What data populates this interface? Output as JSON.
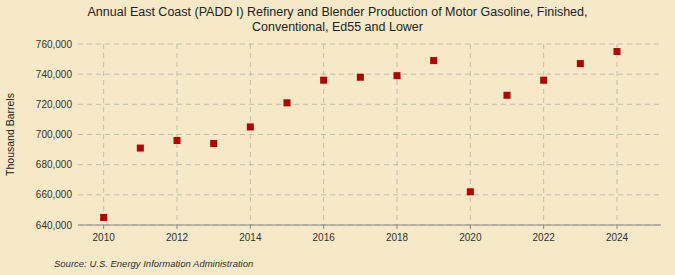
{
  "chart_data": {
    "type": "scatter",
    "title": "Annual East Coast (PADD I) Refinery and Blender Production of Motor Gasoline, Finished,\nConventional, Ed55 and Lower",
    "ylabel": "Thousand Barrels",
    "source": "Source: U.S. Energy Information Administration",
    "x": [
      2010,
      2011,
      2012,
      2013,
      2014,
      2015,
      2016,
      2017,
      2018,
      2019,
      2020,
      2021,
      2022,
      2023,
      2024
    ],
    "values": [
      645000,
      691000,
      696000,
      694000,
      705000,
      721000,
      736000,
      738000,
      739000,
      749000,
      662000,
      726000,
      736000,
      747000,
      755000
    ],
    "xlim": [
      2009.3,
      2025.2
    ],
    "ylim": [
      640000,
      760000
    ],
    "xticks": [
      2010,
      2012,
      2014,
      2016,
      2018,
      2020,
      2022,
      2024
    ],
    "yticks": [
      {
        "value": 640000,
        "label": "640,000"
      },
      {
        "value": 660000,
        "label": "660,000"
      },
      {
        "value": 680000,
        "label": "680,000"
      },
      {
        "value": 700000,
        "label": "700,000"
      },
      {
        "value": 720000,
        "label": "720,000"
      },
      {
        "value": 740000,
        "label": "740,000"
      },
      {
        "value": 760000,
        "label": "760,000"
      }
    ],
    "color": "#b30000",
    "marker": "square",
    "grid": true
  }
}
